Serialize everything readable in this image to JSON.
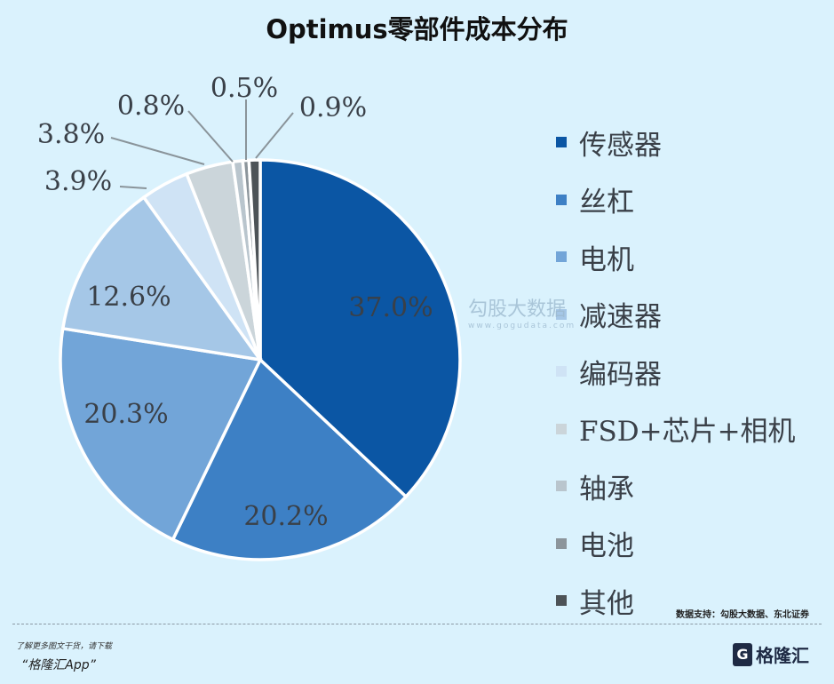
{
  "chart_data": {
    "type": "pie",
    "title": "Optimus零部件成本分布",
    "categories": [
      "传感器",
      "丝杠",
      "电机",
      "减速器",
      "编码器",
      "FSD+芯片+相机",
      "轴承",
      "电池",
      "其他"
    ],
    "values": [
      37.0,
      20.2,
      20.3,
      12.6,
      3.9,
      3.8,
      0.8,
      0.5,
      0.9
    ],
    "labels": [
      "37.0%",
      "20.2%",
      "20.3%",
      "12.6%",
      "3.9%",
      "3.8%",
      "0.8%",
      "0.5%",
      "0.9%"
    ],
    "colors": [
      "#0b56a4",
      "#3d80c5",
      "#72a5d8",
      "#a5c7e7",
      "#cfe3f5",
      "#cbd5da",
      "#b9c5cd",
      "#8c959b",
      "#4d5357"
    ],
    "legend_position": "right",
    "start": "top, clockwise"
  },
  "watermark": {
    "text": "勾股大数据",
    "url": "www.gogudata.com"
  },
  "footer": {
    "source": "数据支持：勾股大数据、东北证券",
    "promo_line1": "了解更多图文干货，请下载",
    "promo_line2": "“格隆汇App”",
    "brand": "格隆汇",
    "brand_mark": "G"
  }
}
